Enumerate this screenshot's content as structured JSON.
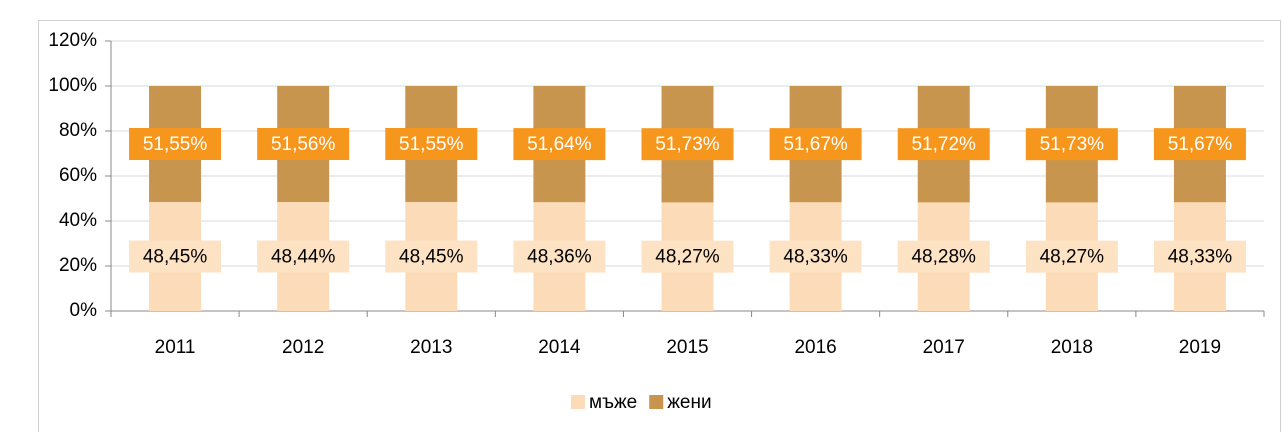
{
  "chart_data": {
    "type": "stacked_bar",
    "categories": [
      "2011",
      "2012",
      "2013",
      "2014",
      "2015",
      "2016",
      "2017",
      "2018",
      "2019"
    ],
    "series": [
      {
        "name": "мъже",
        "color": "#fcdcb8",
        "label_bg": "#fde2c4",
        "label_color": "#000000",
        "values": [
          48.45,
          48.44,
          48.45,
          48.36,
          48.27,
          48.33,
          48.28,
          48.27,
          48.33
        ],
        "value_labels": [
          "48,45%",
          "48,44%",
          "48,45%",
          "48,36%",
          "48,27%",
          "48,33%",
          "48,28%",
          "48,27%",
          "48,33%"
        ]
      },
      {
        "name": "жени",
        "color": "#c8954e",
        "label_bg": "#f7961d",
        "label_color": "#ffffff",
        "values": [
          51.55,
          51.56,
          51.55,
          51.64,
          51.73,
          51.67,
          51.72,
          51.73,
          51.67
        ],
        "value_labels": [
          "51,55%",
          "51,56%",
          "51,55%",
          "51,64%",
          "51,73%",
          "51,67%",
          "51,72%",
          "51,73%",
          "51,67%"
        ]
      }
    ],
    "ylim": [
      0,
      120
    ],
    "yticks": [
      {
        "value": 0,
        "label": "0%"
      },
      {
        "value": 20,
        "label": "20%"
      },
      {
        "value": 40,
        "label": "40%"
      },
      {
        "value": 60,
        "label": "60%"
      },
      {
        "value": 80,
        "label": "80%"
      },
      {
        "value": 100,
        "label": "100%"
      },
      {
        "value": 120,
        "label": "120%"
      }
    ],
    "grid": true,
    "legend": "bottom"
  }
}
